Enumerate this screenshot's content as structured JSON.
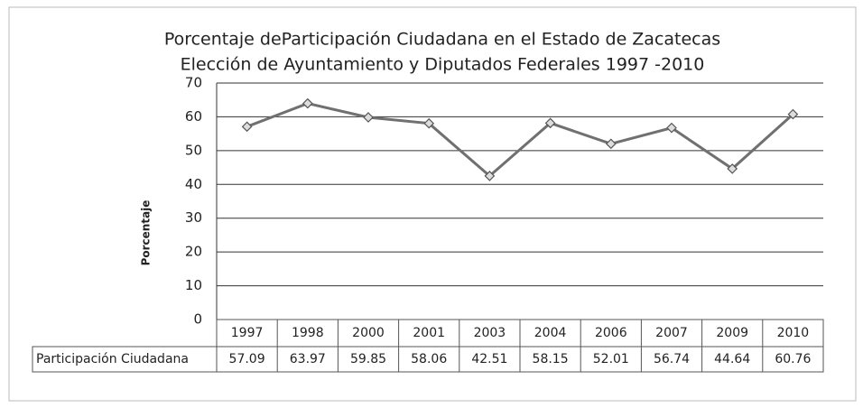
{
  "chart_data": {
    "type": "line",
    "title": "Porcentaje deParticipación Ciudadana en el Estado de Zacatecas",
    "subtitle": "Elección de Ayuntamiento y Diputados Federales 1997 -2010",
    "y_label": "Porcentaje",
    "categories": [
      "1997",
      "1998",
      "2000",
      "2001",
      "2003",
      "2004",
      "2006",
      "2007",
      "2009",
      "2010"
    ],
    "series": [
      {
        "name": "Participación Ciudadana",
        "color": "#707070",
        "values": [
          57.09,
          63.97,
          59.85,
          58.06,
          42.51,
          58.15,
          52.01,
          56.74,
          44.64,
          60.76
        ]
      }
    ],
    "ylim": [
      0,
      70
    ],
    "yticks": [
      0,
      10,
      20,
      30,
      40,
      50,
      60,
      70
    ],
    "grid": true
  }
}
